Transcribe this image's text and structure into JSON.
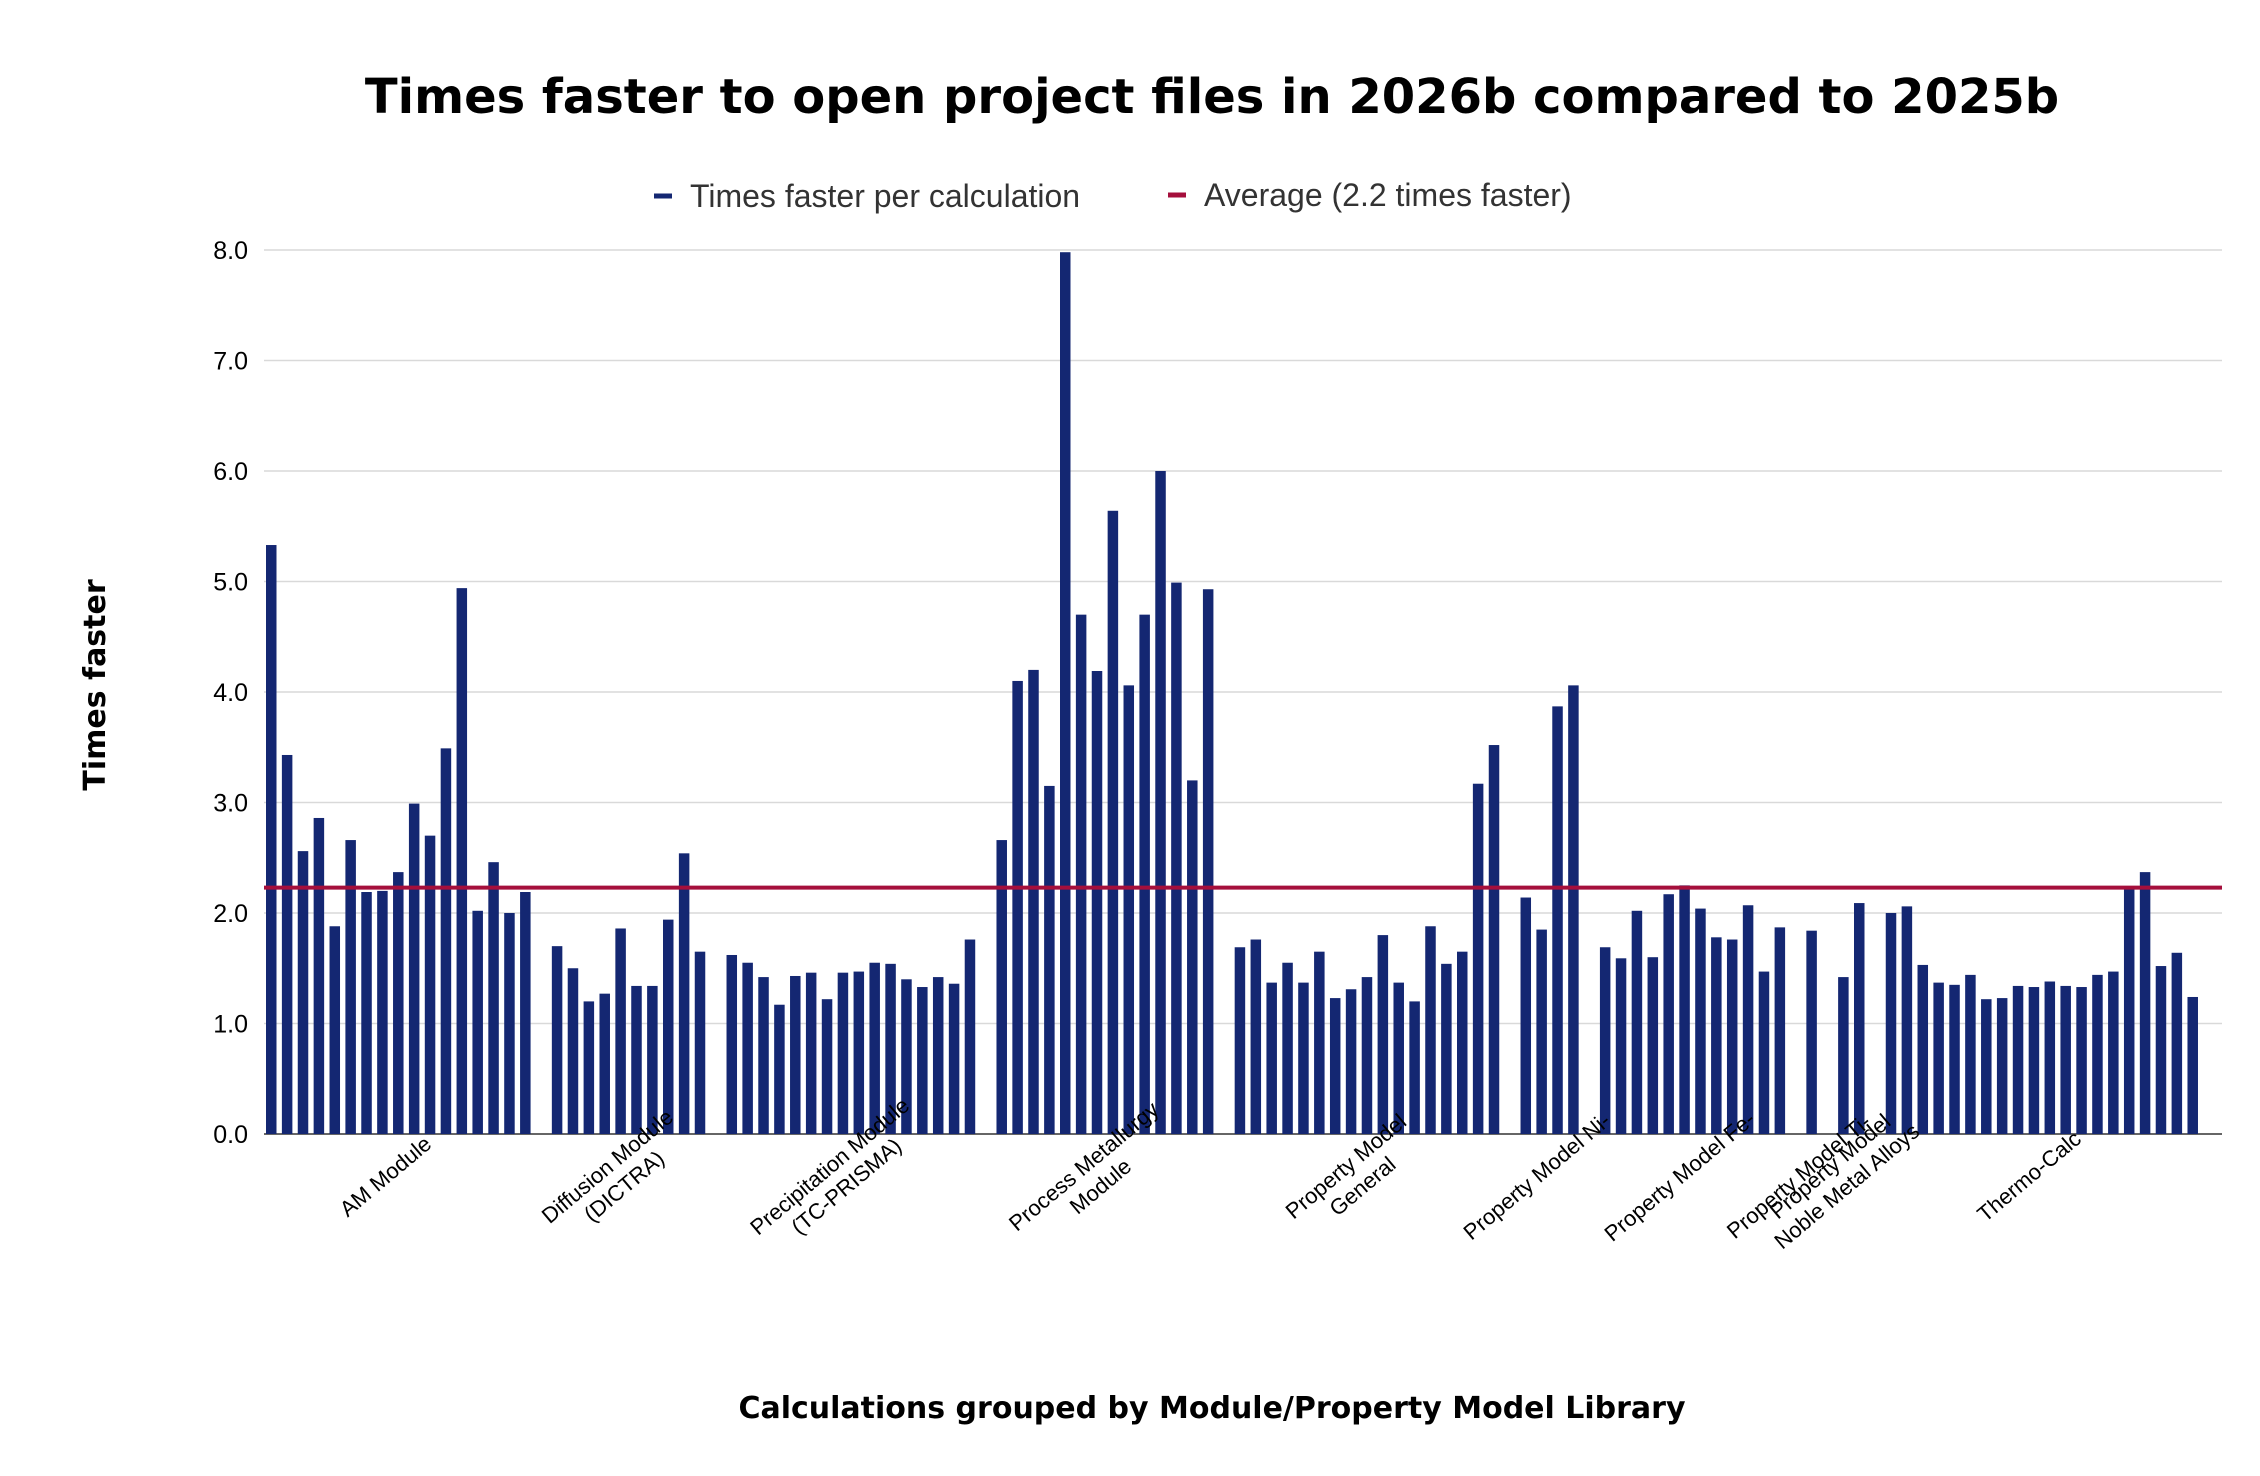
{
  "chart_data": {
    "type": "bar",
    "title": "Times faster to open project files in 2026b compared to 2025b",
    "xlabel": "Calculations grouped by Module/Property Model Library",
    "ylabel": "Times faster",
    "ylim": [
      0,
      8
    ],
    "yticks": [
      "0.0",
      "1.0",
      "2.0",
      "3.0",
      "4.0",
      "5.0",
      "6.0",
      "7.0",
      "8.0"
    ],
    "grid": true,
    "legend_position": "top-center",
    "colors": {
      "bars": "#142772",
      "average": "#a50f3c",
      "grid": "#d9d9d9"
    },
    "series": [
      {
        "name": "Times faster per calculation",
        "kind": "bar"
      },
      {
        "name": "Average (2.2 times faster)",
        "kind": "line",
        "value": 2.23
      }
    ],
    "groups": [
      {
        "label": [
          "AM Module"
        ],
        "values": [
          5.33,
          3.43,
          2.56,
          2.86,
          1.88,
          2.66,
          2.19,
          2.2,
          2.37,
          2.99,
          2.7,
          3.49,
          4.94,
          2.02,
          2.46,
          2.0,
          2.19
        ]
      },
      {
        "label": [
          "Diffusion Module",
          "(DICTRA)"
        ],
        "values": [
          1.7,
          1.5,
          1.2,
          1.27,
          1.86,
          1.34,
          1.34,
          1.94,
          2.54,
          1.65
        ]
      },
      {
        "label": [
          "Precipitation Module",
          "(TC-PRISMA)"
        ],
        "values": [
          1.62,
          1.55,
          1.42,
          1.17,
          1.43,
          1.46,
          1.22,
          1.46,
          1.47,
          1.55,
          1.54,
          1.4,
          1.33,
          1.42,
          1.36,
          1.76
        ]
      },
      {
        "label": [
          "Process Metallurgy",
          "Module"
        ],
        "values": [
          2.66,
          4.1,
          4.2,
          3.15,
          7.98,
          4.7,
          4.19,
          5.64,
          4.06,
          4.7,
          6.0,
          4.99,
          3.2,
          4.93
        ]
      },
      {
        "label": [
          "Property Model",
          "General"
        ],
        "values": [
          1.69,
          1.76,
          1.37,
          1.55,
          1.37,
          1.65,
          1.23,
          1.31,
          1.42,
          1.8,
          1.37,
          1.2,
          1.88,
          1.54,
          1.65,
          3.17,
          3.52
        ]
      },
      {
        "label": [
          "Property Model Ni-"
        ],
        "values": [
          2.14,
          1.85,
          3.87,
          4.06
        ]
      },
      {
        "label": [
          "Property Model Fe-"
        ],
        "values": [
          1.69,
          1.59,
          2.02,
          1.6,
          2.17,
          2.25,
          2.04,
          1.78,
          1.76,
          2.07,
          1.47,
          1.87
        ]
      },
      {
        "label": [
          "Property Model Ti-"
        ],
        "values": [
          1.84
        ]
      },
      {
        "label": [
          "Property Model",
          "Noble Metal Alloys"
        ],
        "values": [
          1.42,
          2.09
        ]
      },
      {
        "label": [
          "Thermo-Calc"
        ],
        "values": [
          2.0,
          2.06,
          1.53,
          1.37,
          1.35,
          1.44,
          1.22,
          1.23,
          1.34,
          1.33,
          1.38,
          1.34,
          1.33,
          1.44,
          1.47,
          2.22,
          2.37,
          1.52,
          1.64,
          1.24
        ]
      }
    ]
  }
}
